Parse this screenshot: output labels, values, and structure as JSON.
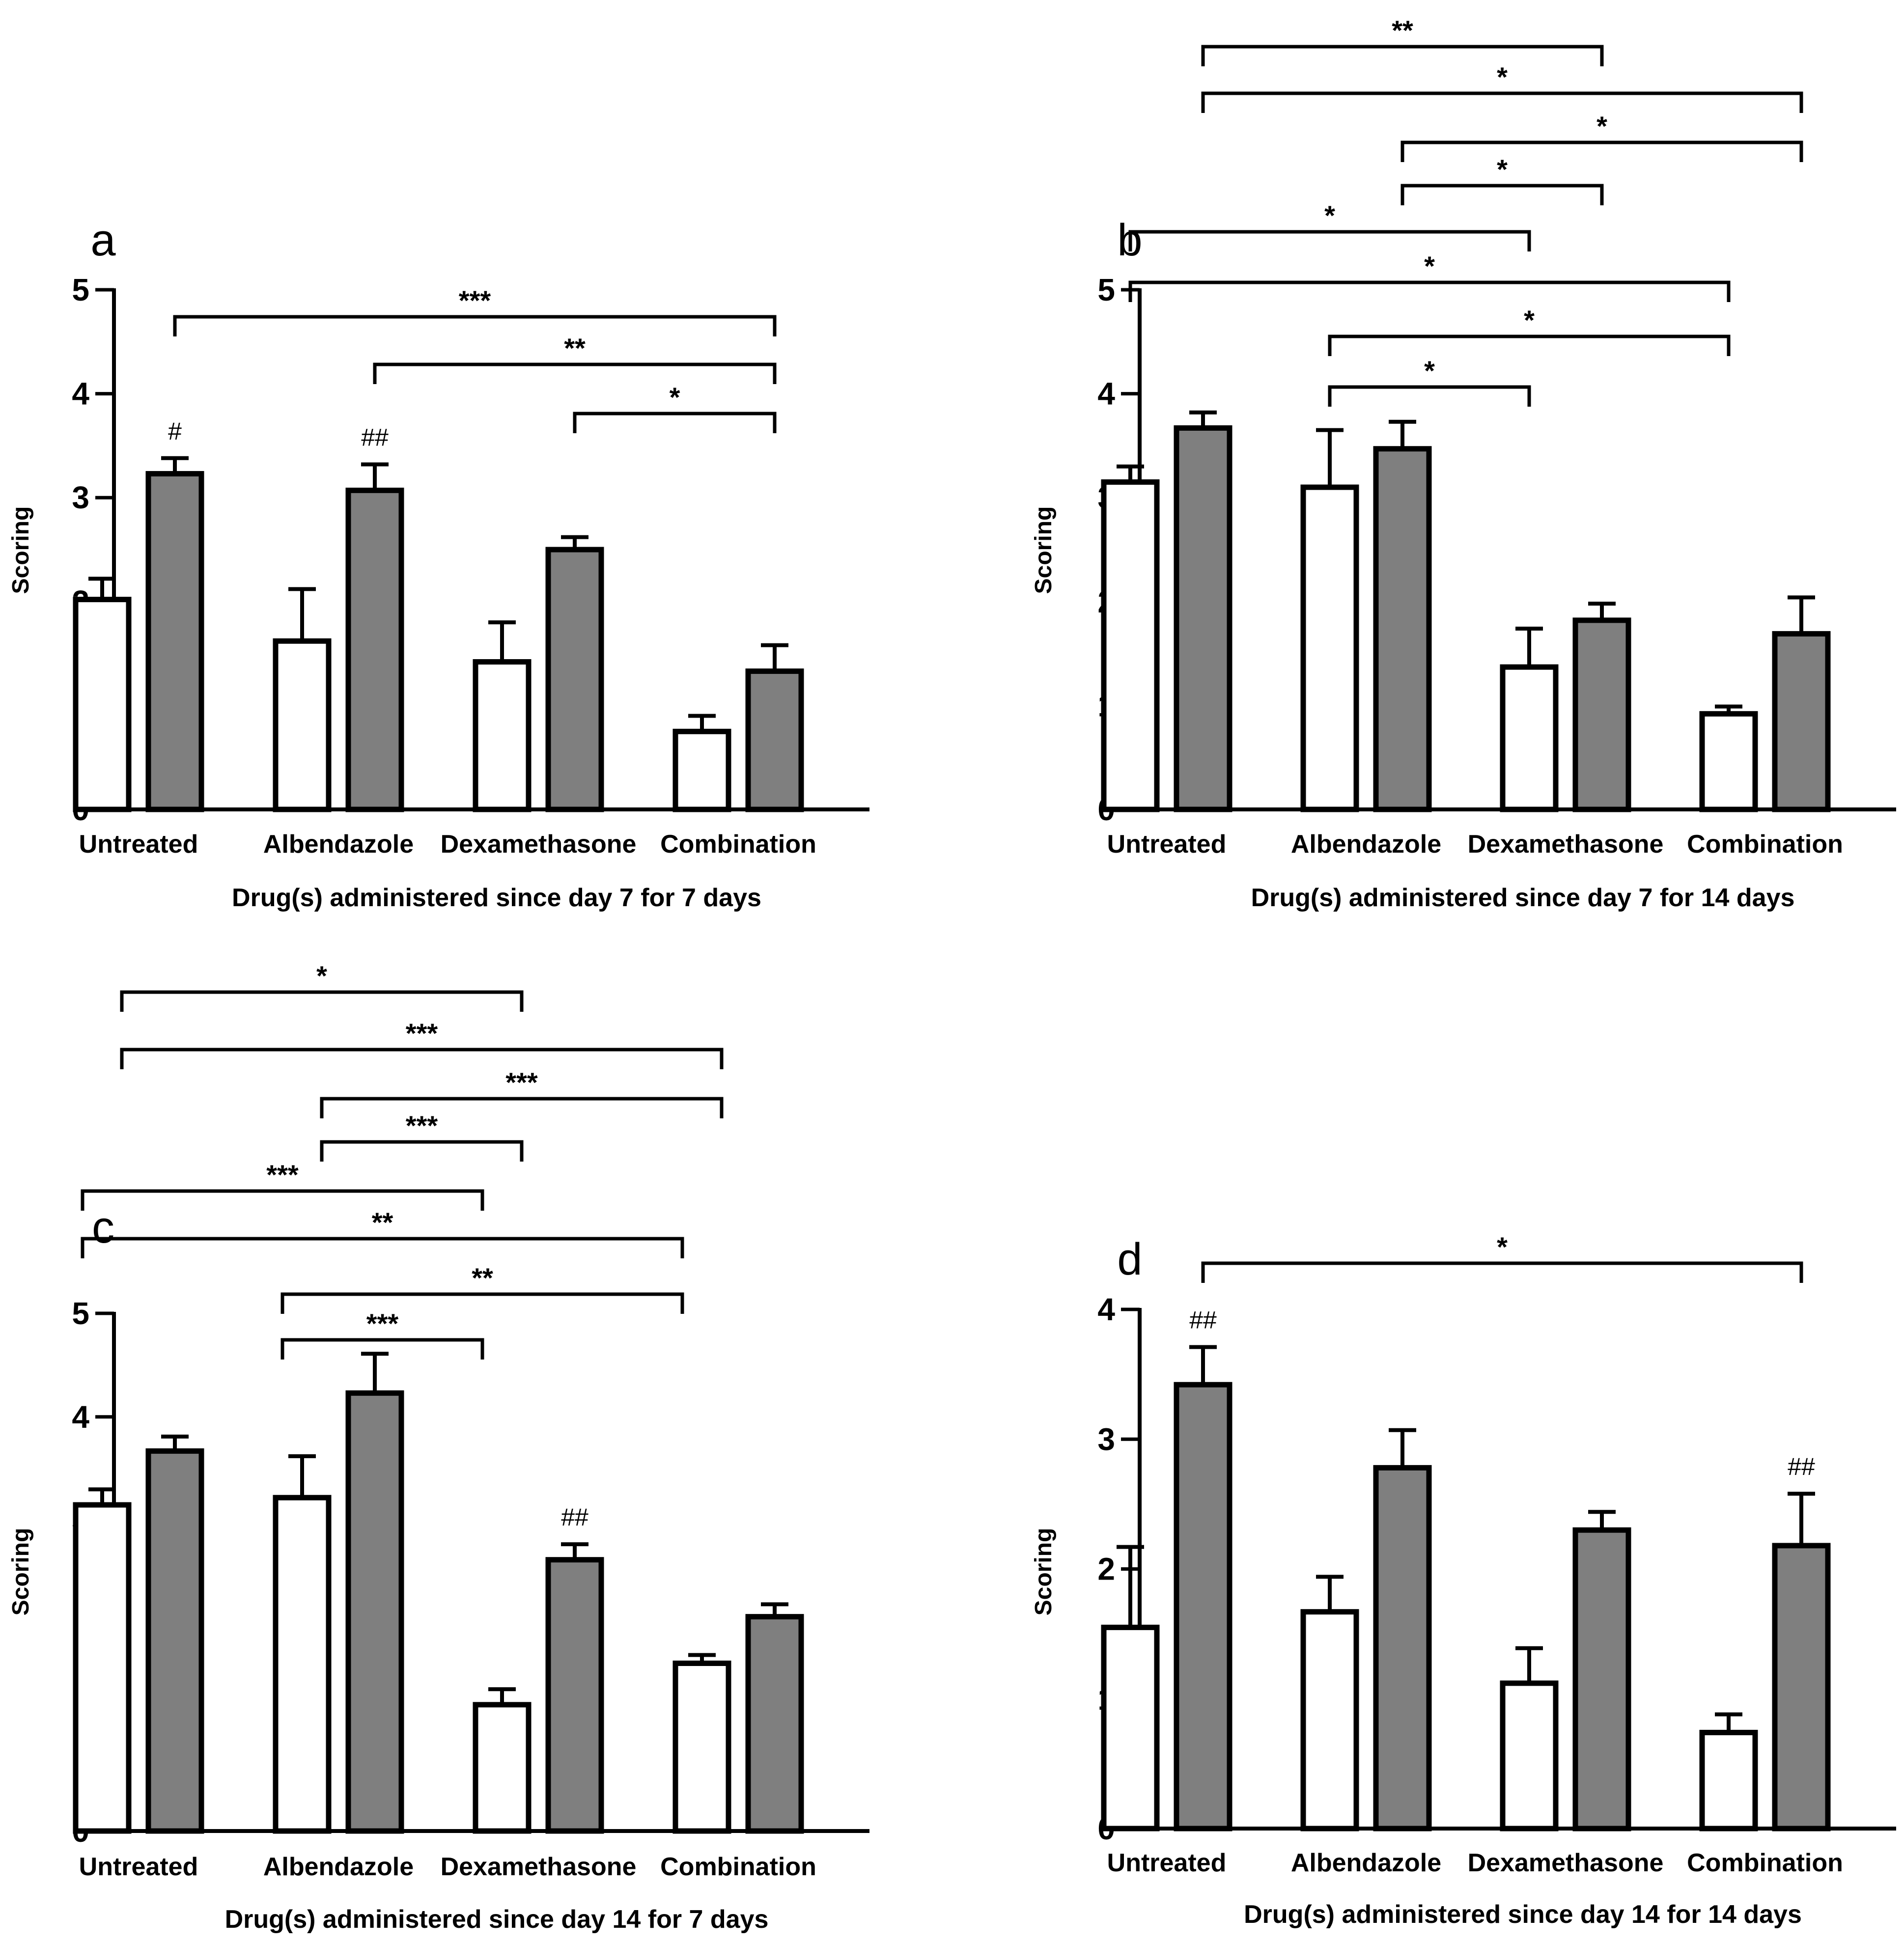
{
  "chart_data": [
    {
      "type": "bar",
      "panel": "a",
      "categories": [
        "Untreated",
        "Albendazole",
        "Dexamethasone",
        "Combination"
      ],
      "series": [
        {
          "name": "white",
          "values": [
            2.02,
            1.62,
            1.42,
            0.75
          ],
          "errors": [
            0.2,
            0.5,
            0.38,
            0.15
          ]
        },
        {
          "name": "gray",
          "values": [
            3.23,
            3.07,
            2.5,
            1.33
          ],
          "errors": [
            0.15,
            0.25,
            0.12,
            0.25
          ]
        }
      ],
      "ylabel": "Scoring",
      "xlabel": "Drug(s) administered since day 7 for 7 days",
      "ylim": [
        0,
        5
      ],
      "yticks": [
        "0",
        "1",
        "2",
        "3",
        "4",
        "5"
      ],
      "annotations": [
        {
          "category": 0,
          "series": 1,
          "text": "#"
        },
        {
          "category": 1,
          "series": 1,
          "text": "##"
        }
      ],
      "brackets": [
        {
          "from": 0,
          "to": 3,
          "label": "***"
        },
        {
          "from": 1,
          "to": 3,
          "label": "**"
        },
        {
          "from": 2,
          "to": 3,
          "label": "*"
        }
      ]
    },
    {
      "type": "bar",
      "panel": "b",
      "categories": [
        "Untreated",
        "Albendazole",
        "Dexamethasone",
        "Combination"
      ],
      "series": [
        {
          "name": "white",
          "values": [
            3.15,
            3.1,
            1.37,
            0.92
          ],
          "errors": [
            0.15,
            0.55,
            0.37,
            0.07
          ]
        },
        {
          "name": "gray",
          "values": [
            3.67,
            3.47,
            1.82,
            1.69
          ],
          "errors": [
            0.15,
            0.26,
            0.16,
            0.35
          ]
        }
      ],
      "ylabel": "Scoring",
      "xlabel": "Drug(s) administered since day 7 for 14 days",
      "ylim": [
        0,
        5
      ],
      "yticks": [
        "0",
        "1",
        "2",
        "3",
        "4",
        "5"
      ],
      "annotations": [],
      "brackets": [
        {
          "from": 0,
          "to": 2,
          "label": "**"
        },
        {
          "from": 0,
          "to": 3,
          "label": "*"
        },
        {
          "from": 1,
          "to": 3,
          "label": "*"
        },
        {
          "from": 1,
          "to": 2,
          "label": "*"
        },
        {
          "from": 0,
          "to": 2,
          "label": "*"
        },
        {
          "from": 0,
          "to": 3,
          "label": "*"
        },
        {
          "from": 1,
          "to": 3,
          "label": "*"
        },
        {
          "from": 1,
          "to": 2,
          "label": "*"
        }
      ]
    },
    {
      "type": "bar",
      "panel": "c",
      "categories": [
        "Untreated",
        "Albendazole",
        "Dexamethasone",
        "Combination"
      ],
      "series": [
        {
          "name": "white",
          "values": [
            3.15,
            3.22,
            1.22,
            1.62
          ],
          "errors": [
            0.15,
            0.4,
            0.15,
            0.08
          ]
        },
        {
          "name": "gray",
          "values": [
            3.67,
            4.23,
            2.62,
            2.07
          ],
          "errors": [
            0.14,
            0.38,
            0.15,
            0.12
          ]
        }
      ],
      "ylabel": "Scoring",
      "xlabel": "Drug(s) administered since day 14 for 7 days",
      "ylim": [
        0,
        5
      ],
      "yticks": [
        "0",
        "1",
        "2",
        "3",
        "4",
        "5"
      ],
      "annotations": [
        {
          "category": 2,
          "series": 1,
          "text": "##"
        }
      ],
      "brackets": [
        {
          "from": 0,
          "to": 2,
          "label": "*"
        },
        {
          "from": 0,
          "to": 3,
          "label": "***"
        },
        {
          "from": 1,
          "to": 3,
          "label": "***"
        },
        {
          "from": 1,
          "to": 2,
          "label": "***"
        },
        {
          "from": 0,
          "to": 2,
          "label": "***"
        },
        {
          "from": 0,
          "to": 3,
          "label": "**"
        },
        {
          "from": 1,
          "to": 3,
          "label": "**"
        },
        {
          "from": 1,
          "to": 2,
          "label": "***"
        }
      ]
    },
    {
      "type": "bar",
      "panel": "d",
      "categories": [
        "Untreated",
        "Albendazole",
        "Dexamethasone",
        "Combination"
      ],
      "series": [
        {
          "name": "white",
          "values": [
            1.55,
            1.67,
            1.12,
            0.74
          ],
          "errors": [
            0.62,
            0.27,
            0.27,
            0.14
          ]
        },
        {
          "name": "gray",
          "values": [
            3.42,
            2.78,
            2.3,
            2.18
          ],
          "errors": [
            0.29,
            0.29,
            0.14,
            0.4
          ]
        }
      ],
      "ylabel": "Scoring",
      "xlabel": "Drug(s) administered since day 14 for 14 days",
      "ylim": [
        0,
        4
      ],
      "yticks": [
        "0",
        "1",
        "2",
        "3",
        "4"
      ],
      "annotations": [
        {
          "category": 0,
          "series": 1,
          "text": "##"
        },
        {
          "category": 3,
          "series": 1,
          "text": "##"
        }
      ],
      "brackets": [
        {
          "from": 0,
          "to": 3,
          "label": "*"
        }
      ]
    }
  ],
  "colors": {
    "white_bar": "#ffffff",
    "gray_bar": "#7f7f7f",
    "stroke": "#000000"
  }
}
